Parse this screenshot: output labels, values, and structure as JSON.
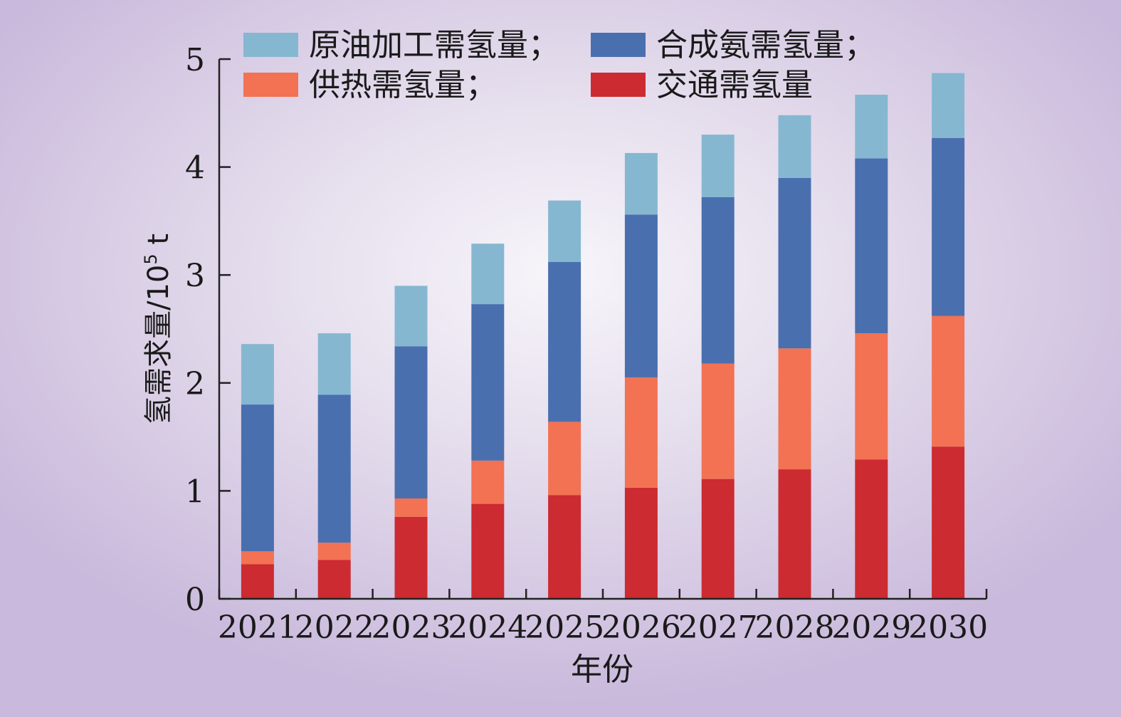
{
  "chart_data": {
    "type": "bar",
    "stacked": true,
    "categories": [
      "2021",
      "2022",
      "2023",
      "2024",
      "2025",
      "2026",
      "2027",
      "2028",
      "2029",
      "2030"
    ],
    "series": [
      {
        "name": "交通需氢量",
        "color": "#cc2b31",
        "values": [
          0.32,
          0.36,
          0.76,
          0.88,
          0.96,
          1.03,
          1.11,
          1.2,
          1.29,
          1.41
        ]
      },
      {
        "name": "供热需氢量；",
        "color": "#f27253",
        "values": [
          0.12,
          0.16,
          0.17,
          0.4,
          0.68,
          1.02,
          1.07,
          1.12,
          1.17,
          1.21
        ]
      },
      {
        "name": "合成氨需氢量；",
        "color": "#4a6faf",
        "values": [
          1.36,
          1.37,
          1.41,
          1.45,
          1.48,
          1.51,
          1.54,
          1.58,
          1.62,
          1.65
        ]
      },
      {
        "name": "原油加工需氢量；",
        "color": "#86b7d1",
        "values": [
          0.56,
          0.57,
          0.56,
          0.56,
          0.57,
          0.57,
          0.58,
          0.58,
          0.59,
          0.6
        ]
      }
    ],
    "xlabel": "年份",
    "ylabel": "氢需求量/10",
    "ylabel_sup": "5",
    "ylabel_unit": " t",
    "ylim": [
      0,
      5
    ],
    "yticks": [
      "0",
      "1",
      "2",
      "3",
      "4",
      "5"
    ],
    "grid": false,
    "legend_position": "top"
  }
}
